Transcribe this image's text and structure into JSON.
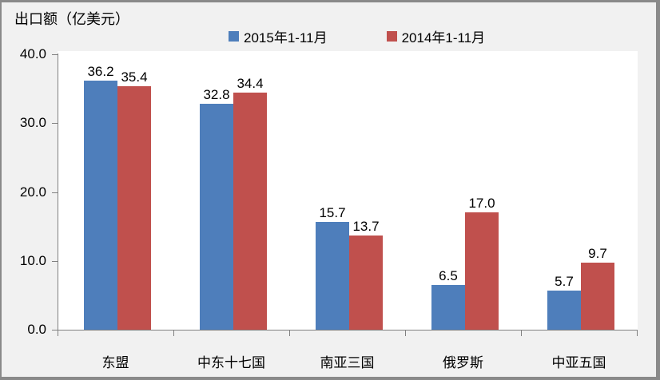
{
  "window": {
    "title": "出口额（亿美元）"
  },
  "chart_data": {
    "type": "bar",
    "title": "出口额（亿美元）",
    "categories": [
      "东盟",
      "中东十七国",
      "南亚三国",
      "俄罗斯",
      "中亚五国"
    ],
    "series": [
      {
        "name": "2015年1-11月",
        "color": "#4E7EBB",
        "values": [
          36.2,
          32.8,
          15.7,
          6.5,
          5.7
        ]
      },
      {
        "name": "2014年1-11月",
        "color": "#C0504D",
        "values": [
          35.4,
          34.4,
          13.7,
          17.0,
          9.7
        ]
      }
    ],
    "ylabel": "出口额（亿美元）",
    "ylim": [
      0,
      40
    ],
    "ytick_step": 10,
    "ytick_labels": [
      "0.0",
      "10.0",
      "20.0",
      "30.0",
      "40.0"
    ],
    "grid": false,
    "legend_position": "top",
    "value_labels": true,
    "colors": {
      "plot_background": "#FFFFFF",
      "outer_background": "#F1F1F1",
      "axis": "#808080",
      "frame_border": "#8A8A8A",
      "text": "#000000"
    }
  }
}
